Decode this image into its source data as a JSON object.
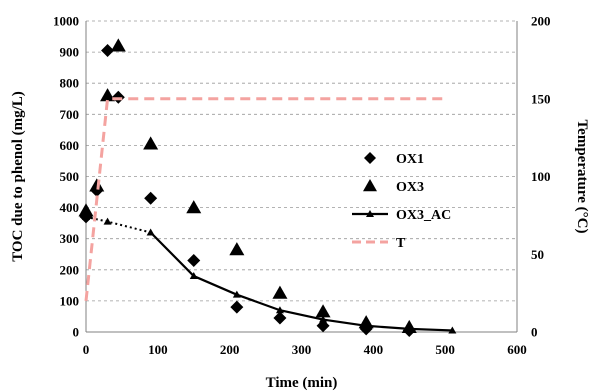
{
  "chart_data": {
    "type": "scatter",
    "xlabel": "Time (min)",
    "ylabel": "TOC due to phenol (mg/L)",
    "y2label": "Temperature (°C)",
    "xlim": [
      0,
      600
    ],
    "ylim": [
      0,
      1000
    ],
    "y2lim": [
      0,
      200
    ],
    "xticks": [
      "0",
      "100",
      "200",
      "300",
      "400",
      "500",
      "600"
    ],
    "yticks": [
      "0",
      "100",
      "200",
      "300",
      "400",
      "500",
      "600",
      "700",
      "800",
      "900",
      "1000"
    ],
    "y2ticks": [
      "0",
      "50",
      "100",
      "150",
      "200"
    ],
    "grid": "horizontal dashed",
    "legend_position": "right",
    "series": [
      {
        "name": "OX1",
        "marker": "diamond",
        "color": "#000000",
        "x": [
          0,
          15,
          30,
          45,
          90,
          150,
          210,
          270,
          330,
          390,
          450
        ],
        "y": [
          370,
          455,
          905,
          755,
          430,
          230,
          80,
          45,
          20,
          10,
          5
        ]
      },
      {
        "name": "OX3",
        "marker": "triangle",
        "color": "#000000",
        "x": [
          0,
          15,
          30,
          45,
          90,
          150,
          210,
          270,
          330,
          390,
          450
        ],
        "y": [
          390,
          470,
          760,
          920,
          605,
          400,
          265,
          125,
          65,
          30,
          15
        ]
      },
      {
        "name": "OX3_AC",
        "marker": "small-triangle",
        "line": "solid",
        "color": "#000000",
        "dotted_until_x": 90,
        "x": [
          0,
          30,
          90,
          150,
          210,
          270,
          330,
          390,
          450,
          510
        ],
        "y": [
          370,
          355,
          320,
          180,
          120,
          70,
          40,
          20,
          10,
          5
        ]
      },
      {
        "name": "T",
        "line": "dashed",
        "color": "#f4a3a0",
        "axis": "right",
        "x": [
          0,
          30,
          500
        ],
        "y": [
          20,
          150,
          150
        ]
      }
    ]
  }
}
